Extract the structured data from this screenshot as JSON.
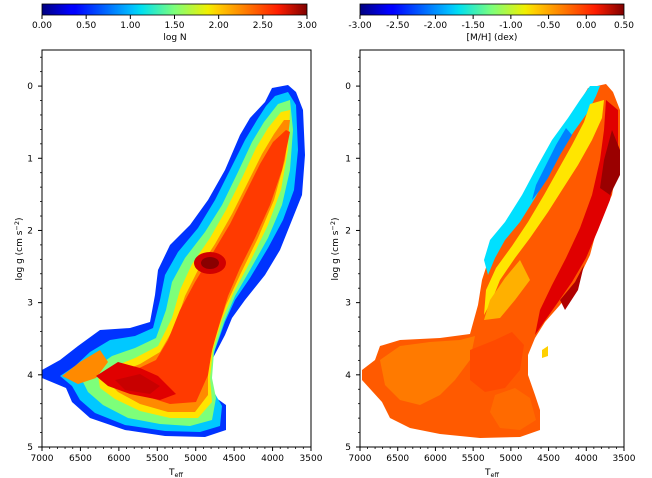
{
  "chart_data": [
    {
      "type": "heatmap",
      "panel": "left",
      "xlabel": "T",
      "xlabel_sub": "eff",
      "ylabel": "log g (cm s",
      "ylabel_sup": "−2",
      "ylabel_close": ")",
      "xlim": [
        7000,
        3500
      ],
      "ylim": [
        5,
        -0.5
      ],
      "x_ticks": [
        "7000",
        "6500",
        "6000",
        "5500",
        "5000",
        "4500",
        "4000",
        "3500"
      ],
      "x_tick_values": [
        7000,
        6500,
        6000,
        5500,
        5000,
        4500,
        4000,
        3500
      ],
      "y_ticks": [
        "0",
        "1",
        "2",
        "3",
        "4",
        "5"
      ],
      "y_tick_values": [
        0,
        1,
        2,
        3,
        4,
        5
      ],
      "colorbar": {
        "label": "log N",
        "range": [
          0.0,
          3.0
        ],
        "ticks": [
          "0.00",
          "0.50",
          "1.00",
          "1.50",
          "2.00",
          "2.50",
          "3.00"
        ],
        "tick_values": [
          0,
          0.5,
          1.0,
          1.5,
          2.0,
          2.5,
          3.0
        ],
        "colormap": "jet"
      },
      "features": {
        "red_giant_branch": {
          "teff_range": [
            5200,
            3700
          ],
          "logg_range": [
            3.0,
            0.4
          ],
          "peak_value": 2.3
        },
        "red_clump": {
          "teff": 4800,
          "logg": 2.4,
          "value": 2.9
        },
        "main_sequence_turnoff": {
          "teff_range": [
            6400,
            5600
          ],
          "logg_range": [
            4.0,
            4.2
          ],
          "peak_value": 2.8
        },
        "main_sequence": {
          "teff_range": [
            5700,
            4700
          ],
          "logg_range": [
            4.3,
            4.6
          ],
          "value": 2.2
        }
      }
    },
    {
      "type": "heatmap",
      "panel": "right",
      "xlabel": "T",
      "xlabel_sub": "eff",
      "ylabel": "log g (cm s",
      "ylabel_sup": "−2",
      "ylabel_close": ")",
      "xlim": [
        7000,
        3500
      ],
      "ylim": [
        5,
        -0.5
      ],
      "x_ticks": [
        "7000",
        "6500",
        "6000",
        "5500",
        "5000",
        "4500",
        "4000",
        "3500"
      ],
      "x_tick_values": [
        7000,
        6500,
        6000,
        5500,
        5000,
        4500,
        4000,
        3500
      ],
      "y_ticks": [
        "0",
        "1",
        "2",
        "3",
        "4",
        "5"
      ],
      "y_tick_values": [
        0,
        1,
        2,
        3,
        4,
        5
      ],
      "colorbar": {
        "label": "[M/H] (dex)",
        "range": [
          -3.0,
          0.5
        ],
        "ticks": [
          "-3.00",
          "-2.50",
          "-2.00",
          "-1.50",
          "-1.00",
          "-0.50",
          "0.00",
          "0.50"
        ],
        "tick_values": [
          -3.0,
          -2.5,
          -2.0,
          -1.5,
          -1.0,
          -0.5,
          0.0,
          0.5
        ],
        "colormap": "jet"
      },
      "features": {
        "metal_rich_giants": {
          "teff_range": [
            4500,
            3700
          ],
          "logg_range": [
            3.3,
            1.0
          ],
          "value": 0.4
        },
        "metal_poor_blue_edge": {
          "teff_range": [
            5500,
            4400
          ],
          "logg_range": [
            2.5,
            0.0
          ],
          "value": -1.3
        },
        "dwarfs": {
          "teff_range": [
            6900,
            4600
          ],
          "logg_range": [
            3.5,
            4.8
          ],
          "value": -0.1
        }
      }
    }
  ]
}
